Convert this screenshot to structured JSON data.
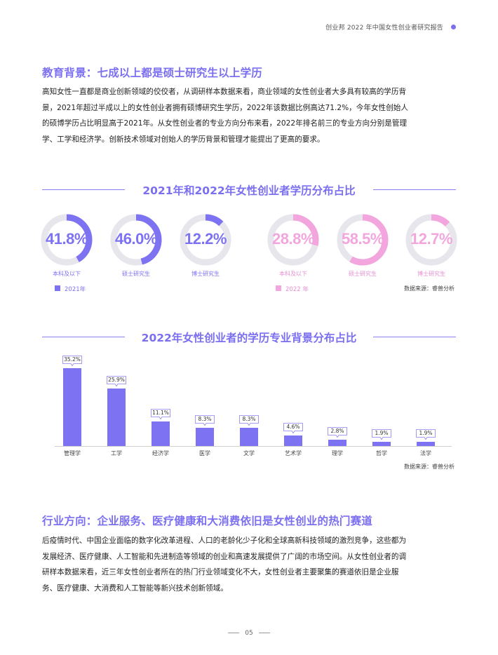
{
  "header": {
    "title": "创业邦 2022 年中国女性创业者研究报告"
  },
  "section1": {
    "title": "教育背景：七成以上都是硕士研究生以上学历",
    "lines": [
      "高知女性一直都是商业创新领域的佼佼者，从调研样本数据来看，商业领域的女性创业者大多具有较高的学历背",
      "景，2021年超过半成以上的女性创业者拥有硕博研究生学历，2022年该数据比例高达71.2%，今年女性创始人",
      "的硕博学历占比明显高于2021年。从女性创业者的专业方向分布来看，2022年排名前三的专业方向分别是管理",
      "学、工学和经济学。创新技术领域对创始人的学历背景和管理才能提出了更高的要求。"
    ]
  },
  "donut_chart": {
    "title": "2021年和2022年女性创业者学历分布占比",
    "colors": {
      "y2021": "#7c72f2",
      "y2022": "#f3a6de",
      "track": "#e6e6ec"
    },
    "items2021": [
      {
        "value": "41.8%",
        "pct": 41.8,
        "label": "本科及以下"
      },
      {
        "value": "46.0%",
        "pct": 46.0,
        "label": "硕士研究生"
      },
      {
        "value": "12.2%",
        "pct": 12.2,
        "label": "博士研究生"
      }
    ],
    "items2022": [
      {
        "value": "28.8%",
        "pct": 28.8,
        "label": "本科及以下"
      },
      {
        "value": "58.5%",
        "pct": 58.5,
        "label": "硕士研究生"
      },
      {
        "value": "12.7%",
        "pct": 12.7,
        "label": "博士研究生"
      }
    ],
    "legend2021": "2021年",
    "legend2022": "2022 年",
    "source": "数据来源：睿兽分析"
  },
  "bar_chart": {
    "title": "2022年女性创业者的学历专业背景分布占比",
    "source": "数据来源：睿兽分析",
    "color": "#7c72f2"
  },
  "chart_data": {
    "type": "bar",
    "title": "2022年女性创业者的学历专业背景分布占比",
    "categories": [
      "管理学",
      "工学",
      "经济学",
      "医学",
      "文学",
      "艺术学",
      "理学",
      "哲学",
      "法学"
    ],
    "values": [
      35.2,
      25.9,
      11.1,
      8.3,
      8.3,
      4.6,
      2.8,
      1.9,
      1.9
    ],
    "labels": [
      "35.2%",
      "25.9%",
      "11.1%",
      "8.3%",
      "8.3%",
      "4.6%",
      "2.8%",
      "1.9%",
      "1.9%"
    ],
    "ylim": [
      0,
      40
    ]
  },
  "section2": {
    "title": "行业方向：企业服务、医疗健康和大消费依旧是女性创业的热门赛道",
    "lines": [
      "后疫情时代、中国企业面临的数字化改革进程、人口的老龄化少子化和全球高新科技领域的激烈竞争，这些都为",
      "发展经济、医疗健康、人工智能和先进制造等领域的创业和高速发展提供了广阔的市场空间。从女性创业者的调",
      "研样本数据来看，近三年女性创业者所在的热门行业领域变化不大，女性创业者主要聚集的赛道依旧是企业服",
      "务、医疗健康、大消费和人工智能等新兴技术创新领域。"
    ]
  },
  "footer": {
    "page": "05"
  }
}
